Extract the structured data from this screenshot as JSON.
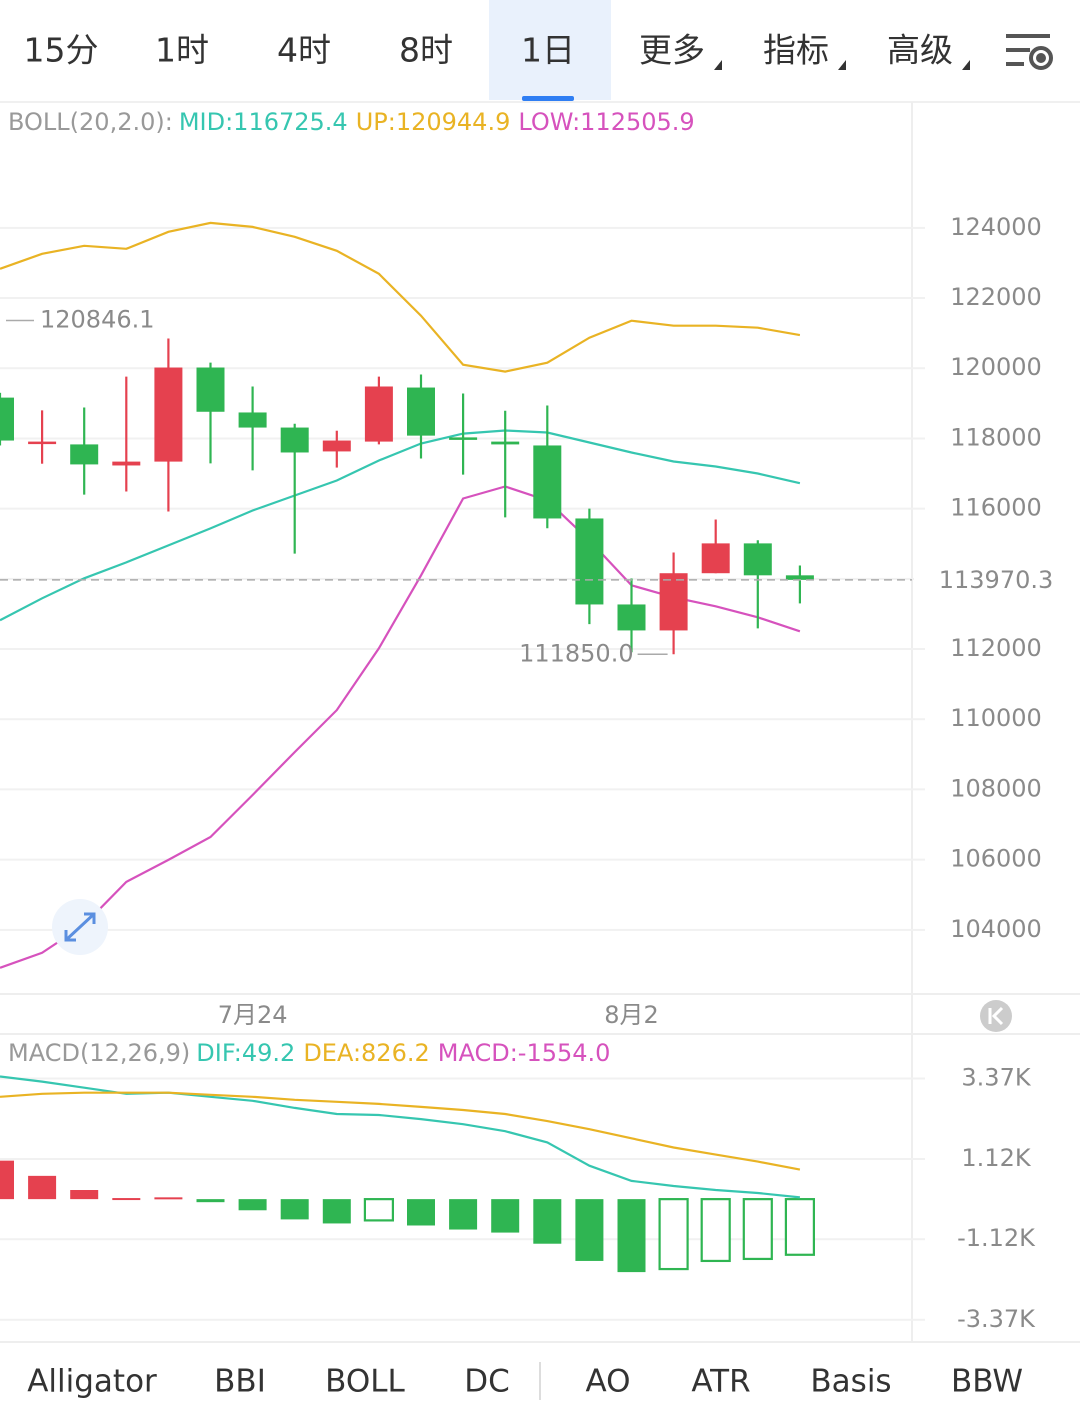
{
  "tabs": [
    "15分",
    "1时",
    "4时",
    "8时",
    "1日",
    "更多",
    "指标",
    "高级"
  ],
  "active_tab": 4,
  "indicator_tabs": [
    "Alligator",
    "BBI",
    "BOLL",
    "DC",
    "AO",
    "ATR",
    "Basis",
    "BBW"
  ],
  "active_indicator": 2,
  "chart_data": [
    {
      "type": "candlestick",
      "indicator": "BOLL(20,2.0):",
      "categories": [
        null,
        null,
        null,
        null,
        null,
        null,
        "7月24",
        null,
        null,
        null,
        null,
        null,
        null,
        null,
        null,
        "8月2",
        null,
        null,
        null,
        null
      ],
      "open": [
        119163,
        117910,
        117830,
        117230,
        117340,
        120020,
        118740,
        118310,
        117630,
        117910,
        119450,
        118030,
        117910,
        117800,
        115720,
        113270,
        112530,
        114160,
        115010,
        114100
      ],
      "high": [
        119300,
        118800,
        118880,
        119760,
        120846.1,
        120160,
        119480,
        118420,
        118220,
        119760,
        119820,
        119280,
        118790,
        118940,
        116000,
        114010,
        114750,
        115690,
        115100,
        114380
      ],
      "low": [
        117800,
        117280,
        116400,
        116490,
        115920,
        117290,
        117090,
        114720,
        117170,
        117830,
        117430,
        116970,
        115750,
        115440,
        112710,
        111910,
        111850,
        114160,
        112590,
        113300
      ],
      "close": [
        117940,
        117910,
        117260,
        117340,
        120020,
        118760,
        118310,
        117600,
        117940,
        119480,
        118080,
        117970,
        117830,
        115720,
        113270,
        112530,
        114160,
        115010,
        114100,
        113970.3
      ],
      "up_color": "#e5414f",
      "down_color": "#2fb552",
      "series": [
        {
          "name": "MID:116725.4",
          "color": "#36c6b0",
          "values": [
            112819,
            113445,
            114014,
            114469,
            114953,
            115436,
            115948,
            116375,
            116802,
            117371,
            117855,
            118139,
            118225,
            118168,
            117883,
            117599,
            117343,
            117200,
            117001,
            116725.4
          ]
        },
        {
          "name": "UP:120944.9",
          "color": "#e9b324",
          "values": [
            122834,
            123260,
            123488,
            123403,
            123886,
            124142,
            124028,
            123744,
            123346,
            122691,
            121496,
            120102,
            119903,
            120159,
            120870,
            121354,
            121212,
            121212,
            121155,
            120944.9
          ]
        },
        {
          "name": "LOW:112505.9",
          "color": "#d652bd",
          "values": [
            102918,
            103345,
            104142,
            105365,
            105991,
            106645,
            107840,
            109064,
            110259,
            112022,
            114099,
            116290,
            116631,
            116233,
            115095,
            113815,
            113473,
            113217,
            112904,
            112505.9
          ]
        }
      ],
      "ylim": [
        102200,
        127500
      ],
      "yticks": [
        104000,
        106000,
        108000,
        110000,
        112000,
        114000,
        116000,
        118000,
        120000,
        122000,
        124000
      ],
      "grid": true,
      "high_marker": 120846.1,
      "low_marker": {
        "value": 111850,
        "label": "111850.0"
      },
      "last_price": 113970.3
    },
    {
      "type": "macd",
      "indicator": "MACD(12,26,9)",
      "up_color": "#e5414f",
      "down_color": "#2fb552",
      "series": [
        {
          "name": "DIF:49.2",
          "color": "#36c6b0",
          "values": [
            3424,
            3283,
            3113,
            2943,
            2972,
            2858,
            2745,
            2547,
            2377,
            2349,
            2236,
            2094,
            1896,
            1585,
            934,
            509,
            368,
            255,
            170,
            49.2
          ]
        },
        {
          "name": "DEA:826.2",
          "color": "#e9b324",
          "values": [
            2858,
            2943,
            2972,
            2972,
            2972,
            2915,
            2858,
            2773,
            2717,
            2660,
            2575,
            2490,
            2377,
            2179,
            1953,
            1698,
            1443,
            1245,
            1047,
            826.2
          ]
        },
        {
          "name": "MACD:-1554.0",
          "color": "#d652bd",
          "values": [
            1075,
            650,
            255,
            30,
            50,
            -85,
            -311,
            -566,
            -679,
            -594,
            -736,
            -849,
            -934,
            -1245,
            -1726,
            -2038,
            -1953,
            -1726,
            -1670,
            -1554.0
          ]
        }
      ],
      "ylim": [
        -3934,
        4556
      ],
      "yticks": [
        {
          "value": 3370,
          "label": "3.37K"
        },
        {
          "value": 1120,
          "label": "1.12K"
        },
        {
          "value": -1120,
          "label": "-1.12K"
        },
        {
          "value": -3370,
          "label": "-3.37K"
        }
      ],
      "grid": true
    }
  ]
}
